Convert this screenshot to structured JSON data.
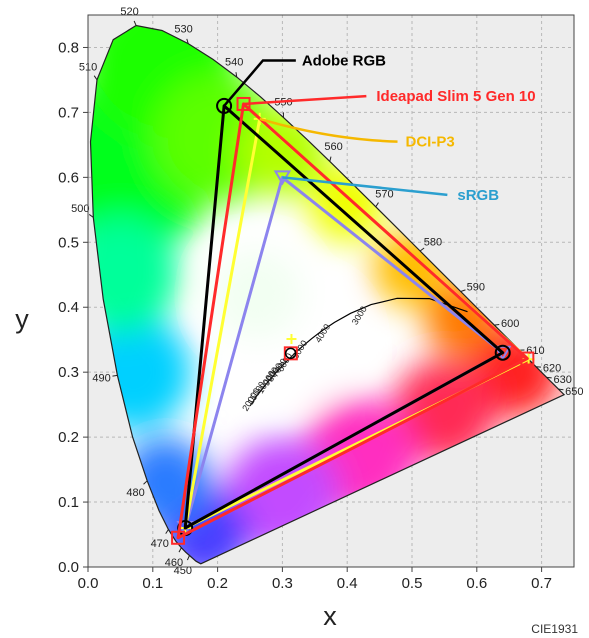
{
  "chart_data": {
    "type": "scatter",
    "subtype": "CIE 1931 chromaticity diagram",
    "xlabel": "x",
    "ylabel": "y",
    "xlim": [
      0.0,
      0.75
    ],
    "ylim": [
      0.0,
      0.85
    ],
    "x_ticks": [
      "0.0",
      "0.1",
      "0.2",
      "0.3",
      "0.4",
      "0.5",
      "0.6",
      "0.7"
    ],
    "y_ticks": [
      "0.0",
      "0.1",
      "0.2",
      "0.3",
      "0.4",
      "0.5",
      "0.6",
      "0.7",
      "0.8"
    ],
    "grid": true,
    "footer": "CIE1931",
    "spectral_locus": [
      {
        "nm": 450,
        "x": 0.1566,
        "y": 0.0177
      },
      {
        "nm": 460,
        "x": 0.144,
        "y": 0.0297
      },
      {
        "nm": 470,
        "x": 0.1241,
        "y": 0.0578
      },
      {
        "nm": 480,
        "x": 0.0913,
        "y": 0.1327
      },
      {
        "nm": 490,
        "x": 0.0454,
        "y": 0.295
      },
      {
        "nm": 500,
        "x": 0.0082,
        "y": 0.5384
      },
      {
        "nm": 510,
        "x": 0.0139,
        "y": 0.7502
      },
      {
        "nm": 520,
        "x": 0.0743,
        "y": 0.8338
      },
      {
        "nm": 530,
        "x": 0.1547,
        "y": 0.8059
      },
      {
        "nm": 540,
        "x": 0.2296,
        "y": 0.7543
      },
      {
        "nm": 550,
        "x": 0.3016,
        "y": 0.6923
      },
      {
        "nm": 560,
        "x": 0.3731,
        "y": 0.6245
      },
      {
        "nm": 570,
        "x": 0.4441,
        "y": 0.5547
      },
      {
        "nm": 580,
        "x": 0.5125,
        "y": 0.4866
      },
      {
        "nm": 590,
        "x": 0.5752,
        "y": 0.4242
      },
      {
        "nm": 600,
        "x": 0.627,
        "y": 0.3725
      },
      {
        "nm": 610,
        "x": 0.6658,
        "y": 0.334
      },
      {
        "nm": 620,
        "x": 0.6915,
        "y": 0.3083
      },
      {
        "nm": 630,
        "x": 0.7079,
        "y": 0.292
      },
      {
        "nm": 650,
        "x": 0.726,
        "y": 0.274
      }
    ],
    "locus_path": [
      [
        0.1741,
        0.005
      ],
      [
        0.1666,
        0.0089
      ],
      [
        0.1566,
        0.0177
      ],
      [
        0.151,
        0.0227
      ],
      [
        0.144,
        0.0297
      ],
      [
        0.1355,
        0.0399
      ],
      [
        0.1241,
        0.0578
      ],
      [
        0.1096,
        0.0868
      ],
      [
        0.0913,
        0.1327
      ],
      [
        0.0687,
        0.2007
      ],
      [
        0.0454,
        0.295
      ],
      [
        0.0235,
        0.4127
      ],
      [
        0.0082,
        0.5384
      ],
      [
        0.0039,
        0.6548
      ],
      [
        0.0139,
        0.7502
      ],
      [
        0.0389,
        0.812
      ],
      [
        0.0743,
        0.8338
      ],
      [
        0.1142,
        0.8262
      ],
      [
        0.1547,
        0.8059
      ],
      [
        0.1929,
        0.7816
      ],
      [
        0.2296,
        0.7543
      ],
      [
        0.2658,
        0.7243
      ],
      [
        0.3016,
        0.6923
      ],
      [
        0.3373,
        0.6589
      ],
      [
        0.3731,
        0.6245
      ],
      [
        0.4087,
        0.5896
      ],
      [
        0.4441,
        0.5547
      ],
      [
        0.4788,
        0.5202
      ],
      [
        0.5125,
        0.4866
      ],
      [
        0.5448,
        0.4544
      ],
      [
        0.5752,
        0.4242
      ],
      [
        0.6029,
        0.3965
      ],
      [
        0.627,
        0.3725
      ],
      [
        0.6482,
        0.3514
      ],
      [
        0.6658,
        0.334
      ],
      [
        0.6915,
        0.3083
      ],
      [
        0.7079,
        0.292
      ],
      [
        0.719,
        0.2809
      ],
      [
        0.726,
        0.274
      ],
      [
        0.7347,
        0.2653
      ]
    ],
    "planckian_locus": [
      [
        0.5857,
        0.3931
      ],
      [
        0.5267,
        0.4133
      ],
      [
        0.477,
        0.4137
      ],
      [
        0.4369,
        0.4041
      ],
      [
        0.4053,
        0.3907
      ],
      [
        0.3804,
        0.3767
      ],
      [
        0.3608,
        0.3635
      ],
      [
        0.3451,
        0.3516
      ],
      [
        0.3324,
        0.341
      ],
      [
        0.3221,
        0.3318
      ],
      [
        0.3135,
        0.3236
      ],
      [
        0.3064,
        0.3165
      ],
      [
        0.3003,
        0.3103
      ],
      [
        0.2952,
        0.3048
      ],
      [
        0.2906,
        0.2999
      ],
      [
        0.28,
        0.288
      ],
      [
        0.272,
        0.278
      ],
      [
        0.26,
        0.263
      ],
      [
        0.255,
        0.255
      ],
      [
        0.253,
        0.252
      ],
      [
        0.25,
        0.248
      ]
    ],
    "cct_labels": [
      {
        "text": "3000",
        "x": 0.4369,
        "y": 0.4041
      },
      {
        "text": "4000",
        "x": 0.3804,
        "y": 0.3767
      },
      {
        "text": "5000",
        "x": 0.3451,
        "y": 0.3516
      },
      {
        "text": "6000",
        "x": 0.3221,
        "y": 0.3318
      },
      {
        "text": "7000",
        "x": 0.3135,
        "y": 0.3236
      },
      {
        "text": "8000",
        "x": 0.3064,
        "y": 0.3165
      },
      {
        "text": "9000",
        "x": 0.3003,
        "y": 0.3103
      },
      {
        "text": "10000",
        "x": 0.2952,
        "y": 0.3048
      },
      {
        "text": "15000",
        "x": 0.28,
        "y": 0.288
      },
      {
        "text": "20000",
        "x": 0.272,
        "y": 0.278
      }
    ],
    "series": [
      {
        "name": "Adobe RGB",
        "color": "#000000",
        "points": [
          [
            0.64,
            0.33
          ],
          [
            0.21,
            0.71
          ],
          [
            0.15,
            0.06
          ]
        ],
        "label_anchor": [
          0.33,
          0.78
        ]
      },
      {
        "name": "Ideapad Slim 5 Gen 10",
        "color": "#ff2a2a",
        "points": [
          [
            0.678,
            0.321
          ],
          [
            0.24,
            0.713
          ],
          [
            0.139,
            0.045
          ]
        ],
        "label_anchor": [
          0.445,
          0.725
        ]
      },
      {
        "name": "DCI-P3",
        "color": "#ffff33",
        "label_color": "#f5b800",
        "points": [
          [
            0.68,
            0.32
          ],
          [
            0.265,
            0.69
          ],
          [
            0.15,
            0.06
          ]
        ],
        "label_anchor": [
          0.49,
          0.655
        ]
      },
      {
        "name": "sRGB",
        "color": "#8c84ee",
        "label_color": "#2b9fcf",
        "points": [
          [
            0.64,
            0.33
          ],
          [
            0.3,
            0.6
          ],
          [
            0.15,
            0.06
          ]
        ],
        "label_anchor": [
          0.57,
          0.573
        ]
      }
    ],
    "white_points": [
      {
        "name": "Ideapad Slim 5 Gen 10",
        "color": "#ff2a2a",
        "x": 0.313,
        "y": 0.329
      },
      {
        "name": "Adobe RGB",
        "color": "#000000",
        "x": 0.3127,
        "y": 0.329
      },
      {
        "name": "DCI-P3",
        "color": "#ffff33",
        "x": 0.314,
        "y": 0.351
      }
    ]
  }
}
